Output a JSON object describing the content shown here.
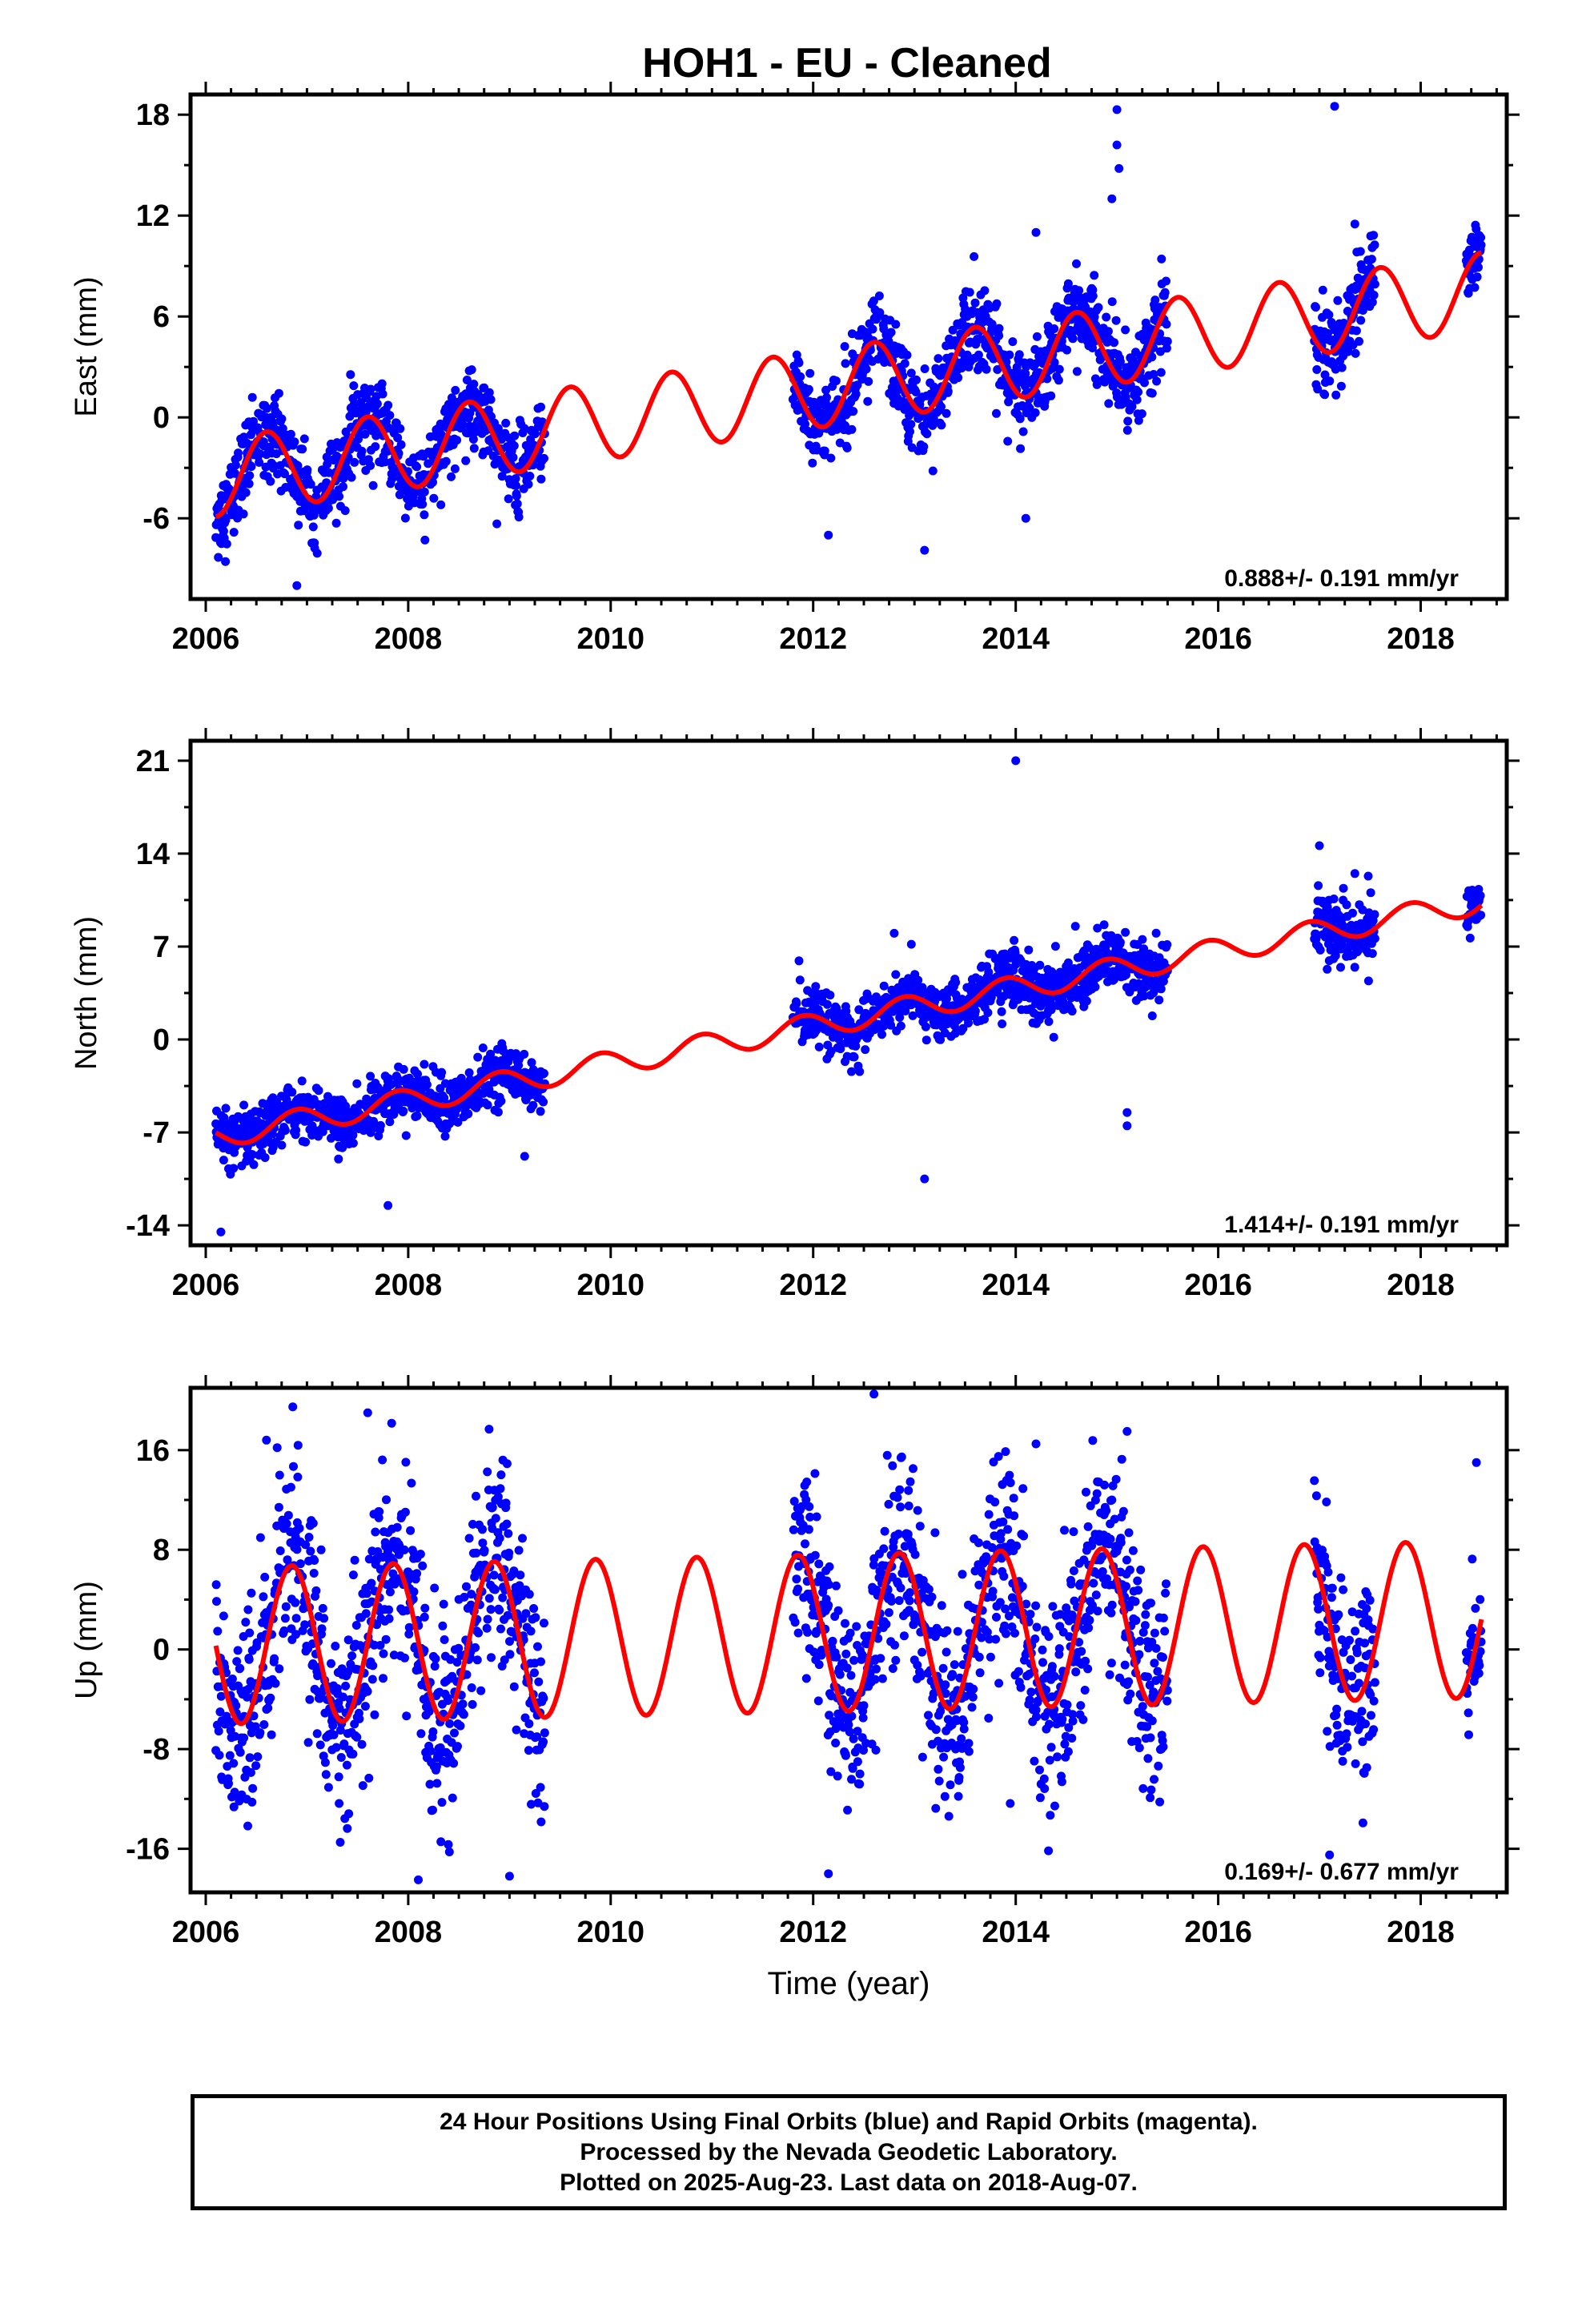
{
  "title": "HOH1  - EU - Cleaned",
  "colors": {
    "data_points": "#0000ff",
    "model_curve": "#ff0000",
    "axes": "#000000",
    "background": "#ffffff"
  },
  "footer": {
    "line1": "24 Hour Positions Using Final Orbits (blue) and Rapid Orbits (magenta).",
    "line2": "Processed by the Nevada Geodetic Laboratory.",
    "line3": "Plotted on 2025-Aug-23. Last data on 2018-Aug-07."
  },
  "chart_data": [
    {
      "type": "scatter",
      "ylabel": "East (mm)",
      "xlabel": "",
      "xlim": [
        2005.85,
        2018.85
      ],
      "ylim": [
        -10.8,
        19.2
      ],
      "xticks": [
        "2006",
        "2008",
        "2010",
        "2012",
        "2014",
        "2016",
        "2018"
      ],
      "yticks": [
        "-6",
        "0",
        "6",
        "12",
        "18"
      ],
      "rate_label": "0.888+/- 0.191 mm/yr",
      "model": {
        "name": "model fit (red)",
        "intercept_mm": -3.6,
        "reference_year": 2006.1,
        "rate_mm_per_yr": 0.888,
        "annual_amplitude_mm": 2.3,
        "phase_year": 2006.1
      },
      "data_segments": [
        {
          "start": 2006.1,
          "end": 2009.35,
          "noise_mm": 1.2
        },
        {
          "start": 2011.8,
          "end": 2015.5,
          "noise_mm": 1.2
        },
        {
          "start": 2016.95,
          "end": 2017.55,
          "noise_mm": 1.2
        },
        {
          "start": 2018.45,
          "end": 2018.6,
          "noise_mm": 1.0
        }
      ],
      "outliers": [
        {
          "x": 2015.0,
          "y": 18.3
        },
        {
          "x": 2015.0,
          "y": 16.2
        },
        {
          "x": 2015.02,
          "y": 14.8
        },
        {
          "x": 2017.15,
          "y": 18.5
        },
        {
          "x": 2017.35,
          "y": 11.5
        },
        {
          "x": 2014.2,
          "y": 11.0
        },
        {
          "x": 2012.15,
          "y": -7.0
        },
        {
          "x": 2013.1,
          "y": -7.9
        },
        {
          "x": 2014.1,
          "y": -6.0
        },
        {
          "x": 2006.9,
          "y": -10.0
        },
        {
          "x": 2014.95,
          "y": 13.0
        }
      ]
    },
    {
      "type": "scatter",
      "ylabel": "North (mm)",
      "xlabel": "",
      "xlim": [
        2005.85,
        2018.85
      ],
      "ylim": [
        -15.5,
        22.5
      ],
      "xticks": [
        "2006",
        "2008",
        "2010",
        "2012",
        "2014",
        "2016",
        "2018"
      ],
      "yticks": [
        "-14",
        "-7",
        "0",
        "7",
        "14",
        "21"
      ],
      "rate_label": "1.414+/- 0.191 mm/yr",
      "model": {
        "name": "model fit (red)",
        "intercept_mm": -7.3,
        "reference_year": 2006.1,
        "rate_mm_per_yr": 1.414,
        "annual_amplitude_mm": 0.9,
        "phase_year": 2006.4
      },
      "data_segments": [
        {
          "start": 2006.1,
          "end": 2009.35,
          "noise_mm": 1.0
        },
        {
          "start": 2011.8,
          "end": 2015.5,
          "noise_mm": 1.1
        },
        {
          "start": 2016.95,
          "end": 2017.55,
          "noise_mm": 1.3
        },
        {
          "start": 2018.45,
          "end": 2018.6,
          "noise_mm": 0.9
        }
      ],
      "outliers": [
        {
          "x": 2014.0,
          "y": 21.0
        },
        {
          "x": 2006.15,
          "y": -14.5
        },
        {
          "x": 2007.8,
          "y": -12.5
        },
        {
          "x": 2013.1,
          "y": -10.5
        },
        {
          "x": 2015.1,
          "y": -6.5
        },
        {
          "x": 2015.1,
          "y": -5.5
        },
        {
          "x": 2017.0,
          "y": 14.6
        },
        {
          "x": 2017.35,
          "y": 12.5
        },
        {
          "x": 2009.15,
          "y": -8.8
        },
        {
          "x": 2012.8,
          "y": 8.0
        }
      ]
    },
    {
      "type": "scatter",
      "ylabel": "Up (mm)",
      "xlabel": "Time (year)",
      "xlim": [
        2005.85,
        2018.85
      ],
      "ylim": [
        -19.5,
        21.0
      ],
      "xticks": [
        "2006",
        "2008",
        "2010",
        "2012",
        "2014",
        "2016",
        "2018"
      ],
      "yticks": [
        "-16",
        "-8",
        "0",
        "8",
        "16"
      ],
      "rate_label": "0.169+/- 0.677 mm/yr",
      "model": {
        "name": "model fit (red)",
        "intercept_mm": 0.3,
        "reference_year": 2006.1,
        "rate_mm_per_yr": 0.169,
        "annual_amplitude_mm": 6.3,
        "phase_year": 2006.35
      },
      "data_segments": [
        {
          "start": 2006.1,
          "end": 2009.35,
          "noise_mm": 4.0
        },
        {
          "start": 2011.8,
          "end": 2015.5,
          "noise_mm": 4.0
        },
        {
          "start": 2016.95,
          "end": 2017.55,
          "noise_mm": 4.0
        },
        {
          "start": 2018.45,
          "end": 2018.6,
          "noise_mm": 3.0
        }
      ],
      "outliers": [
        {
          "x": 2007.6,
          "y": 19.0
        },
        {
          "x": 2012.6,
          "y": 20.5
        },
        {
          "x": 2008.1,
          "y": -18.5
        },
        {
          "x": 2012.15,
          "y": -18.0
        },
        {
          "x": 2009.0,
          "y": -18.2
        },
        {
          "x": 2015.1,
          "y": 17.5
        },
        {
          "x": 2006.6,
          "y": 16.8
        },
        {
          "x": 2018.55,
          "y": 15.0
        },
        {
          "x": 2014.2,
          "y": 16.5
        },
        {
          "x": 2017.1,
          "y": -16.5
        }
      ]
    }
  ]
}
